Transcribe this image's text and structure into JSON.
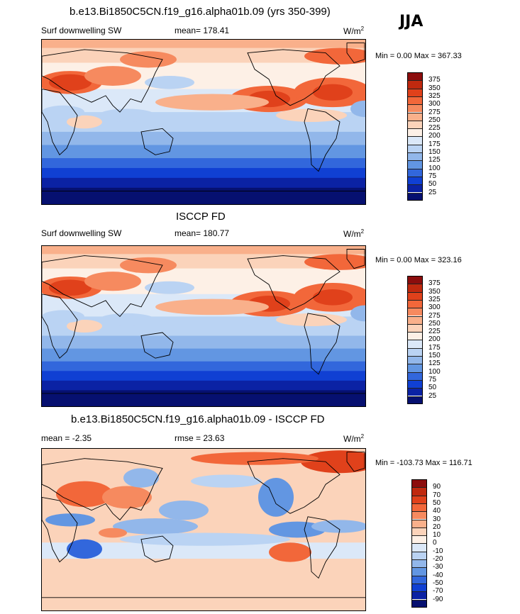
{
  "season": "JJA",
  "panels": [
    {
      "title": "b.e13.Bi1850C5CN.f19_g16.alpha01b.09 (yrs 350-399)",
      "left_label": "Surf downwelling SW",
      "center_label": "mean= 178.41",
      "units": "W/m",
      "units_sup": "2",
      "minmax": "Min =   0.00 Max = 367.33",
      "colorbar_labels": [
        "375",
        "350",
        "325",
        "300",
        "275",
        "250",
        "225",
        "200",
        "175",
        "150",
        "125",
        "100",
        "75",
        "50",
        "25"
      ],
      "colors": [
        "#8c0d0d",
        "#c0290f",
        "#e0411b",
        "#f2673a",
        "#f68a5f",
        "#f9b08b",
        "#fbd3ba",
        "#fdf0e6",
        "#dbe8f8",
        "#bad3f3",
        "#92b7ea",
        "#6296e2",
        "#3267dc",
        "#1040d3",
        "#0b22a4",
        "#061070"
      ]
    },
    {
      "title": "ISCCP FD",
      "left_label": "Surf downwelling SW",
      "center_label": "mean= 180.77",
      "units": "W/m",
      "units_sup": "2",
      "minmax": "Min =   0.00 Max = 323.16",
      "colorbar_labels": [
        "375",
        "350",
        "325",
        "300",
        "275",
        "250",
        "225",
        "200",
        "175",
        "150",
        "125",
        "100",
        "75",
        "50",
        "25"
      ],
      "colors": [
        "#8c0d0d",
        "#c0290f",
        "#e0411b",
        "#f2673a",
        "#f68a5f",
        "#f9b08b",
        "#fbd3ba",
        "#fdf0e6",
        "#dbe8f8",
        "#bad3f3",
        "#92b7ea",
        "#6296e2",
        "#3267dc",
        "#1040d3",
        "#0b22a4",
        "#061070"
      ]
    },
    {
      "title": "b.e13.Bi1850C5CN.f19_g16.alpha01b.09 - ISCCP FD",
      "left_label": "mean =  -2.35",
      "center_label": "rmse =  23.63",
      "units": "W/m",
      "units_sup": "2",
      "minmax": "Min = -103.73 Max = 116.71",
      "colorbar_labels": [
        "90",
        "70",
        "50",
        "40",
        "30",
        "20",
        "10",
        "0",
        "-10",
        "-20",
        "-30",
        "-40",
        "-50",
        "-70",
        "-90"
      ],
      "colors": [
        "#8c0d0d",
        "#c0290f",
        "#e0411b",
        "#f2673a",
        "#f68a5f",
        "#f9b08b",
        "#fbd3ba",
        "#fdf0e6",
        "#dbe8f8",
        "#bad3f3",
        "#92b7ea",
        "#6296e2",
        "#3267dc",
        "#1040d3",
        "#0b22a4",
        "#061070"
      ]
    }
  ],
  "chart_data": [
    {
      "type": "heatmap",
      "title": "b.e13.Bi1850C5CN.f19_g16.alpha01b.09 (yrs 350-399)",
      "variable": "Surf downwelling SW",
      "season": "JJA",
      "units": "W/m2",
      "mean": 178.41,
      "min": 0.0,
      "max": 367.33,
      "contour_levels": [
        25,
        50,
        75,
        100,
        125,
        150,
        175,
        200,
        225,
        250,
        275,
        300,
        325,
        350,
        375
      ],
      "projection": "cylindrical equidistant, Pacific-centered"
    },
    {
      "type": "heatmap",
      "title": "ISCCP FD",
      "variable": "Surf downwelling SW",
      "season": "JJA",
      "units": "W/m2",
      "mean": 180.77,
      "min": 0.0,
      "max": 323.16,
      "contour_levels": [
        25,
        50,
        75,
        100,
        125,
        150,
        175,
        200,
        225,
        250,
        275,
        300,
        325,
        350,
        375
      ],
      "projection": "cylindrical equidistant, Pacific-centered"
    },
    {
      "type": "heatmap",
      "title": "b.e13.Bi1850C5CN.f19_g16.alpha01b.09 - ISCCP FD",
      "season": "JJA",
      "units": "W/m2",
      "mean": -2.35,
      "rmse": 23.63,
      "min": -103.73,
      "max": 116.71,
      "contour_levels": [
        -90,
        -70,
        -50,
        -40,
        -30,
        -20,
        -10,
        0,
        10,
        20,
        30,
        40,
        50,
        70,
        90
      ],
      "projection": "cylindrical equidistant, Pacific-centered"
    }
  ]
}
